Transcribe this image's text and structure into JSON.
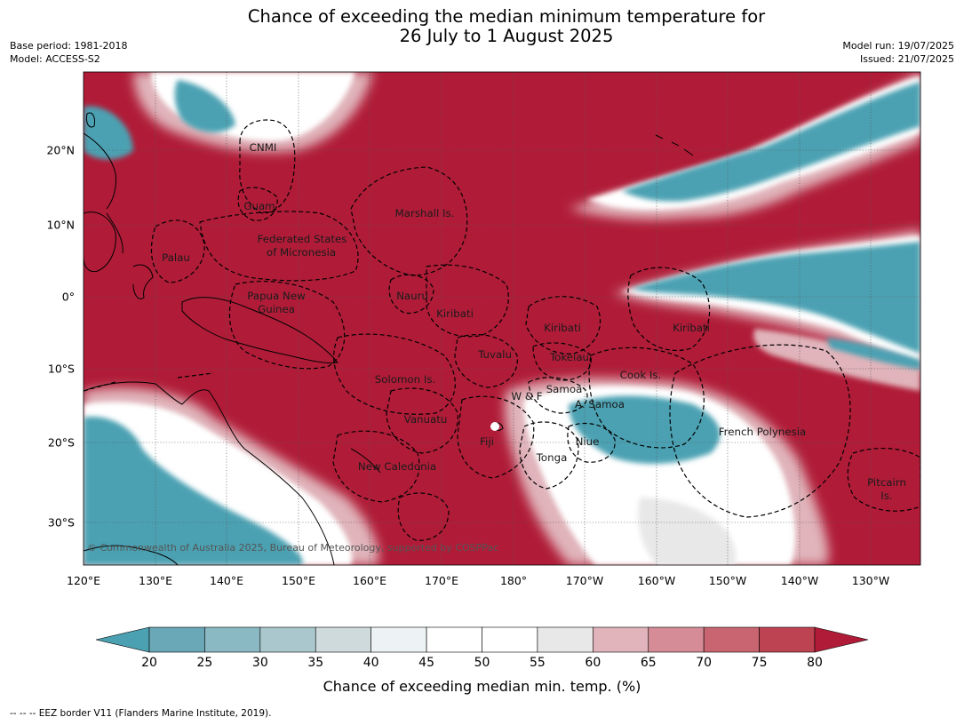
{
  "title": {
    "line1": "Chance of exceeding the median minimum temperature for",
    "line2": "26 July to 1 August 2025"
  },
  "meta": {
    "base_period": "Base period: 1981-2018",
    "model": "Model: ACCESS-S2",
    "model_run": "Model run: 19/07/2025",
    "issued": "Issued: 21/07/2025"
  },
  "map": {
    "lon_labels": [
      "120°E",
      "130°E",
      "140°E",
      "150°E",
      "160°E",
      "170°E",
      "180°",
      "170°W",
      "160°W",
      "150°W",
      "140°W",
      "130°W"
    ],
    "lat_labels": [
      "20°N",
      "10°N",
      "0°",
      "10°S",
      "20°S",
      "30°S"
    ],
    "places": [
      "CNMI",
      "Guam",
      "Marshall Is.",
      "Federated States",
      "of Micronesia",
      "Palau",
      "Papua New",
      "Guinea",
      "Nauru",
      "Kiribati",
      "Kiribati",
      "Kiribati",
      "Tuvalu",
      "Tokelau",
      "Cook Is.",
      "Solomon Is.",
      "W & F",
      "Samoa",
      "A. Samoa",
      "Vanuatu",
      "Fiji",
      "Niue",
      "Tonga",
      "French Polynesia",
      "New Caledonia",
      "Pitcairn",
      "Is."
    ],
    "copyright": "© Commonwealth of Australia 2025, Bureau of Meteorology, supported by COSPPac",
    "colors": {
      "warm": "#b01c38",
      "cool": "#4ba1b2",
      "neutral": "#ffffff"
    }
  },
  "colorbar": {
    "ticks": [
      "20",
      "25",
      "30",
      "35",
      "40",
      "45",
      "50",
      "55",
      "60",
      "65",
      "70",
      "75",
      "80"
    ],
    "colors": [
      "#4ba1b2",
      "#6aa8b7",
      "#8ab9c3",
      "#a9c7cc",
      "#cfdadd",
      "#edf3f4",
      "#ffffff",
      "#ffffff",
      "#e8e8e8",
      "#e0b4ba",
      "#d58c96",
      "#c86570",
      "#bd4352",
      "#b01c38"
    ],
    "label": "Chance of exceeding median min. temp. (%)"
  },
  "footer": "--  --  -- EEZ border V11 (Flanders Marine Institute, 2019)."
}
